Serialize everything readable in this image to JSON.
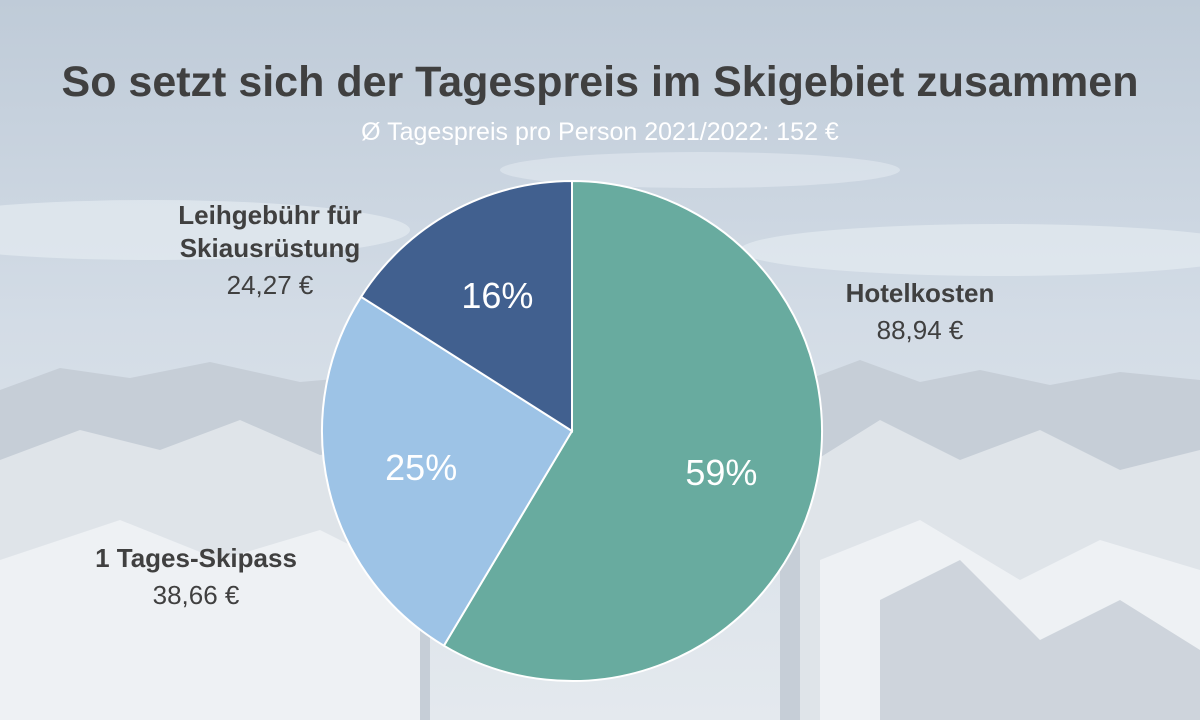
{
  "title": "So setzt sich der Tagespreis im Skigebiet zusammen",
  "subtitle": "Ø Tagespreis pro Person 2021/2022: 152 €",
  "chart_data": {
    "type": "pie",
    "title": "So setzt sich der Tagespreis im Skigebiet zusammen",
    "subtitle": "Ø Tagespreis pro Person 2021/2022: 152 €",
    "slices": [
      {
        "label_lines": [
          "Hotelkosten"
        ],
        "value_text": "88,94 €",
        "value": 88.94,
        "percent": 59,
        "percent_text": "59%",
        "color": "#68ab9f"
      },
      {
        "label_lines": [
          "1 Tages-Skipass"
        ],
        "value_text": "38,66 €",
        "value": 38.66,
        "percent": 25,
        "percent_text": "25%",
        "color": "#9dc3e6"
      },
      {
        "label_lines": [
          "Leihgebühr für",
          "Skiausrüstung"
        ],
        "value_text": "24,27 €",
        "value": 24.27,
        "percent": 16,
        "percent_text": "16%",
        "color": "#41608f"
      }
    ],
    "start_angle": "12 o'clock",
    "direction": "clockwise"
  }
}
